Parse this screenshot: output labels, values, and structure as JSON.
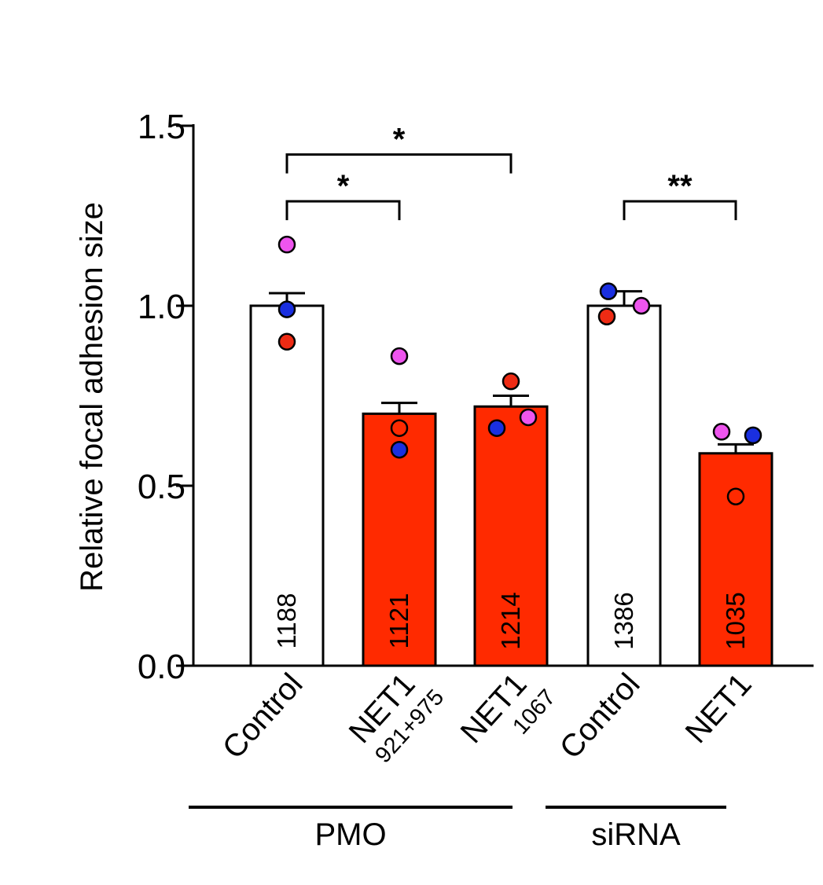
{
  "chart_data": {
    "type": "bar",
    "ylabel": "Relative focal adhesion size",
    "ylim": [
      0,
      1.5
    ],
    "yticks": [
      "0.0",
      "0.5",
      "1.0",
      "1.5"
    ],
    "categories": [
      {
        "label": "Control",
        "sub": ""
      },
      {
        "label": "NET1",
        "sub": "921+975"
      },
      {
        "label": "NET1",
        "sub": "1067"
      },
      {
        "label": "Control",
        "sub": ""
      },
      {
        "label": "NET1",
        "sub": ""
      }
    ],
    "values": [
      1.0,
      0.7,
      0.72,
      1.0,
      0.59
    ],
    "errors": [
      0.035,
      0.03,
      0.03,
      0.04,
      0.025
    ],
    "n_labels": [
      "1188",
      "1121",
      "1214",
      "1386",
      "1035"
    ],
    "bar_colors": [
      "#ffffff",
      "#ff2a00",
      "#ff2a00",
      "#ffffff",
      "#ff2a00"
    ],
    "points": [
      [
        {
          "v": 1.17,
          "color": "#ee55ee"
        },
        {
          "v": 0.99,
          "color": "#1a2fe0"
        },
        {
          "v": 0.9,
          "color": "#ee2b14"
        }
      ],
      [
        {
          "v": 0.86,
          "color": "#ee55ee"
        },
        {
          "v": 0.66,
          "color": "#ff2a00"
        },
        {
          "v": 0.6,
          "color": "#1a2fe0"
        }
      ],
      [
        {
          "v": 0.79,
          "color": "#ee2b14"
        },
        {
          "v": 0.66,
          "color": "#1a2fe0"
        },
        {
          "v": 0.69,
          "color": "#ee55ee"
        }
      ],
      [
        {
          "v": 1.04,
          "color": "#1a2fe0"
        },
        {
          "v": 0.97,
          "color": "#ee2b14"
        },
        {
          "v": 1.0,
          "color": "#ee55ee"
        }
      ],
      [
        {
          "v": 0.65,
          "color": "#ee55ee"
        },
        {
          "v": 0.64,
          "color": "#1a2fe0"
        },
        {
          "v": 0.47,
          "color": "#ff2a00"
        }
      ]
    ],
    "groups": [
      {
        "label": "PMO",
        "from": 0,
        "to": 2
      },
      {
        "label": "siRNA",
        "from": 3,
        "to": 4
      }
    ],
    "significance": [
      {
        "from": 0,
        "to": 2,
        "label": "*",
        "level": 1.42
      },
      {
        "from": 0,
        "to": 1,
        "label": "*",
        "level": 1.29
      },
      {
        "from": 3,
        "to": 4,
        "label": "**",
        "level": 1.29
      }
    ]
  }
}
